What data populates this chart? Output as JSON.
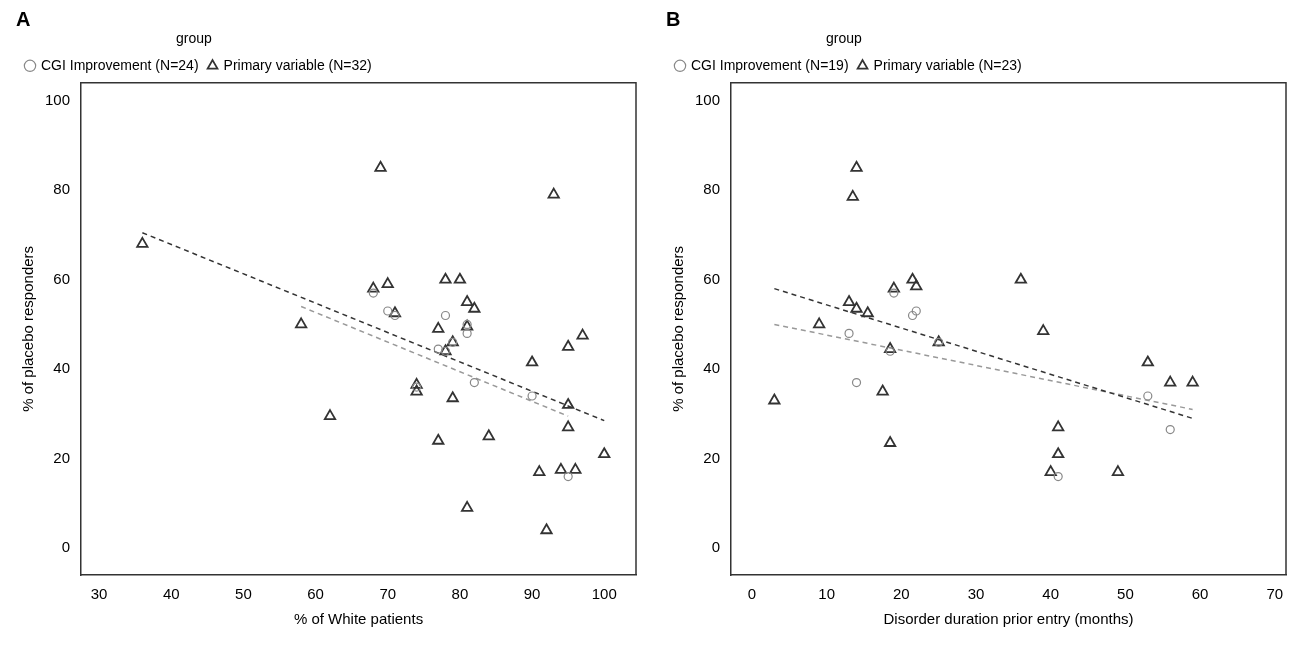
{
  "chart_data": [
    {
      "type": "scatter",
      "title": "A",
      "xlabel": "% of White patients",
      "ylabel": "% of placebo responders",
      "legend_title": "group",
      "legend": "top left",
      "grid": false,
      "xlim": [
        27.5,
        104.4
      ],
      "xticks": [
        30,
        40,
        50,
        60,
        70,
        80,
        90,
        100
      ],
      "ylim": [
        -6,
        104
      ],
      "yticks": [
        0,
        20,
        40,
        60,
        80,
        100
      ],
      "series": [
        {
          "name": "CGI Improvement (N=24)",
          "color": "#888888",
          "marker": "circle",
          "x": [
            68,
            70,
            71,
            74,
            77,
            78,
            78,
            79,
            81,
            81,
            82,
            90,
            95
          ],
          "values": [
            57,
            53,
            52,
            36,
            44.5,
            52,
            44,
            46,
            48,
            50,
            37,
            34,
            16
          ]
        },
        {
          "name": "Primary variable (N=32)",
          "color": "#333333",
          "marker": "triangle",
          "x": [
            36,
            58,
            62,
            68,
            69,
            70,
            71,
            74,
            74,
            77,
            77,
            78,
            78,
            79,
            79,
            80,
            81,
            81,
            81,
            82,
            84,
            90,
            91,
            92,
            93,
            94,
            95,
            95,
            95,
            96,
            97,
            100
          ],
          "values": [
            68,
            50,
            29.5,
            58,
            85,
            59,
            52.5,
            36.5,
            35,
            49,
            24,
            60,
            44,
            46,
            33.5,
            60,
            55,
            49.5,
            9,
            53.5,
            25,
            41.5,
            17,
            4,
            79,
            17.5,
            45,
            32,
            27,
            17.5,
            47.5,
            21
          ]
        },
        {
          "type": "line",
          "color": "#333333",
          "line_style": "dashed",
          "marker": "none",
          "x": [
            36,
            100
          ],
          "values": [
            70.5,
            28.5
          ]
        },
        {
          "type": "line",
          "color": "#999999",
          "line_style": "dashed",
          "marker": "none",
          "x": [
            58,
            95
          ],
          "values": [
            54,
            29.5
          ]
        }
      ]
    },
    {
      "type": "scatter",
      "title": "B",
      "xlabel": "Disorder duration prior entry (months)",
      "ylabel": "% of placebo responders",
      "legend_title": "group",
      "legend": "top left",
      "grid": false,
      "xlim": [
        -2.8,
        71.5
      ],
      "xticks": [
        0,
        10,
        20,
        30,
        40,
        50,
        60,
        70
      ],
      "ylim": [
        -6,
        104
      ],
      "yticks": [
        0,
        20,
        40,
        60,
        80,
        100
      ],
      "series": [
        {
          "name": "CGI Improvement (N=19)",
          "color": "#888888",
          "marker": "circle",
          "x": [
            13,
            14,
            19,
            18.5,
            21.5,
            22,
            25,
            41,
            53,
            56
          ],
          "values": [
            48,
            37,
            57,
            44,
            52,
            53,
            46,
            16,
            34,
            26.5
          ]
        },
        {
          "name": "Primary variable (N=23)",
          "color": "#333333",
          "marker": "triangle",
          "x": [
            3,
            9,
            13,
            13.5,
            14,
            14,
            15.5,
            17.5,
            18.5,
            18.5,
            19,
            21.5,
            22,
            25,
            36,
            39,
            40,
            41,
            41,
            49,
            53,
            56,
            59
          ],
          "values": [
            33,
            50,
            55,
            78.5,
            85,
            53.5,
            52.5,
            35,
            44.5,
            23.5,
            58,
            60,
            58.5,
            46,
            60,
            48.5,
            17,
            27,
            21,
            17,
            41.5,
            37,
            37
          ]
        },
        {
          "type": "line",
          "color": "#333333",
          "line_style": "dashed",
          "marker": "none",
          "x": [
            3,
            59
          ],
          "values": [
            58,
            29
          ]
        },
        {
          "type": "line",
          "color": "#999999",
          "line_style": "dashed",
          "marker": "none",
          "x": [
            3,
            59
          ],
          "values": [
            50,
            31
          ]
        }
      ]
    }
  ]
}
